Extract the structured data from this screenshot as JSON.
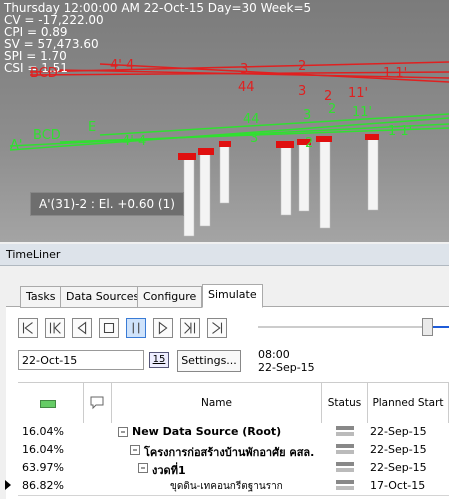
{
  "viewport": {
    "overlay": [
      "Thursday 12:00:00 AM 22-Oct-15 Day=30 Week=5",
      "CV = -17,222.00",
      "CPI = 0.89",
      "SV = 57,473.60",
      "SPI = 1.70",
      "CSI = 1.51"
    ],
    "tooltip": "A'(31)-2 : El. +0.60 (1)",
    "red_labels": [
      "BCD",
      "4' 4",
      "3",
      "2",
      "1 1'",
      "44",
      "3",
      "2",
      "11'"
    ],
    "green_labels": [
      "A'",
      "BCD",
      "E",
      "44",
      "3",
      "2",
      "11'",
      "4' 4",
      "3",
      "2",
      "1 1'"
    ]
  },
  "panel": {
    "title": "TimeLiner",
    "tabs": [
      "Tasks",
      "Data Sources",
      "Configure",
      "Simulate"
    ],
    "date": "22-Oct-15",
    "calendar_icon": "15",
    "settings_button": "Settings...",
    "time": "08:00",
    "time_date": "22-Sep-15",
    "columns": [
      "Name",
      "Status",
      "Planned Start"
    ],
    "rows": [
      {
        "progress": "16.04%",
        "name": "New Data Source (Root)",
        "planned_start": "22-Sep-15"
      },
      {
        "progress": "16.04%",
        "name": "โครงการก่อสร้างบ้านพักอาศัย คสล.",
        "planned_start": "22-Sep-15"
      },
      {
        "progress": "63.97%",
        "name": "งวดที่1",
        "planned_start": "22-Sep-15"
      },
      {
        "progress": "86.82%",
        "name": "ขุดดิน-เทคอนกรีตฐานราก",
        "planned_start": "17-Oct-15"
      }
    ]
  }
}
